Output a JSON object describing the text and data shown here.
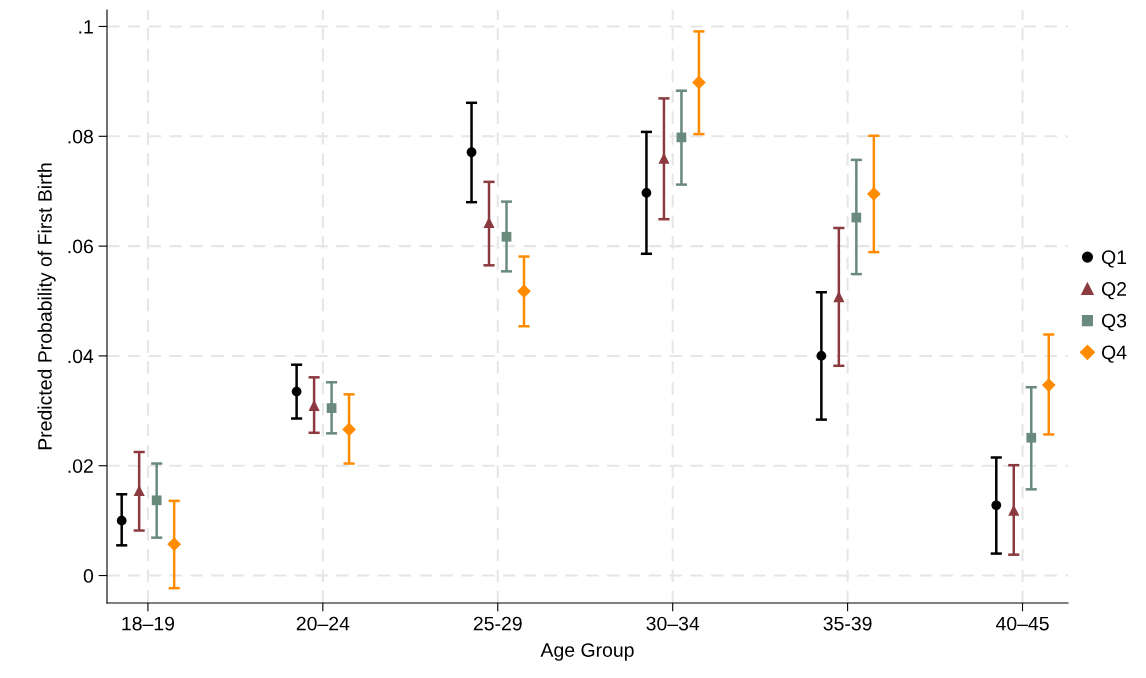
{
  "chart_data": {
    "type": "scatter",
    "xlabel": "Age Group",
    "ylabel": "Predicted Probability of First Birth",
    "categories": [
      "18–19",
      "20–24",
      "25-29",
      "30–34",
      "35-39",
      "40–45"
    ],
    "ylim": [
      -0.005,
      0.103
    ],
    "yticks": [
      {
        "value": 0,
        "label": "0"
      },
      {
        "value": 0.02,
        "label": ".02"
      },
      {
        "value": 0.04,
        "label": ".04"
      },
      {
        "value": 0.06,
        "label": ".06"
      },
      {
        "value": 0.08,
        "label": ".08"
      },
      {
        "value": 0.1,
        "label": ".1"
      }
    ],
    "grid": true,
    "legend": "right",
    "series": [
      {
        "name": "Q1",
        "color": "#000000",
        "marker": "circle",
        "values": [
          0.01,
          0.0335,
          0.0771,
          0.0697,
          0.04,
          0.0128
        ],
        "errors": [
          [
            0.0055,
            0.0148
          ],
          [
            0.0286,
            0.0384
          ],
          [
            0.068,
            0.0861
          ],
          [
            0.0586,
            0.0808
          ],
          [
            0.0284,
            0.0516
          ],
          [
            0.004,
            0.0215
          ]
        ]
      },
      {
        "name": "Q2",
        "color": "#8b3a3f",
        "marker": "triangle",
        "values": [
          0.0155,
          0.031,
          0.0643,
          0.076,
          0.0508,
          0.0119
        ],
        "errors": [
          [
            0.0082,
            0.0225
          ],
          [
            0.026,
            0.0361
          ],
          [
            0.0565,
            0.0717
          ],
          [
            0.0649,
            0.0869
          ],
          [
            0.0382,
            0.0633
          ],
          [
            0.0038,
            0.0201
          ]
        ]
      },
      {
        "name": "Q3",
        "color": "#6a8a7e",
        "marker": "square",
        "values": [
          0.0137,
          0.0305,
          0.0617,
          0.0798,
          0.0652,
          0.0251
        ],
        "errors": [
          [
            0.0069,
            0.0204
          ],
          [
            0.0259,
            0.0352
          ],
          [
            0.0554,
            0.0681
          ],
          [
            0.0712,
            0.0883
          ],
          [
            0.0549,
            0.0757
          ],
          [
            0.0157,
            0.0343
          ]
        ]
      },
      {
        "name": "Q4",
        "color": "#ff8c00",
        "marker": "diamond",
        "values": [
          0.0057,
          0.0266,
          0.0518,
          0.0898,
          0.0695,
          0.0347
        ],
        "errors": [
          [
            -0.0023,
            0.0136
          ],
          [
            0.0204,
            0.033
          ],
          [
            0.0454,
            0.0581
          ],
          [
            0.0804,
            0.0991
          ],
          [
            0.0589,
            0.0801
          ],
          [
            0.0257,
            0.0439
          ]
        ]
      }
    ]
  }
}
